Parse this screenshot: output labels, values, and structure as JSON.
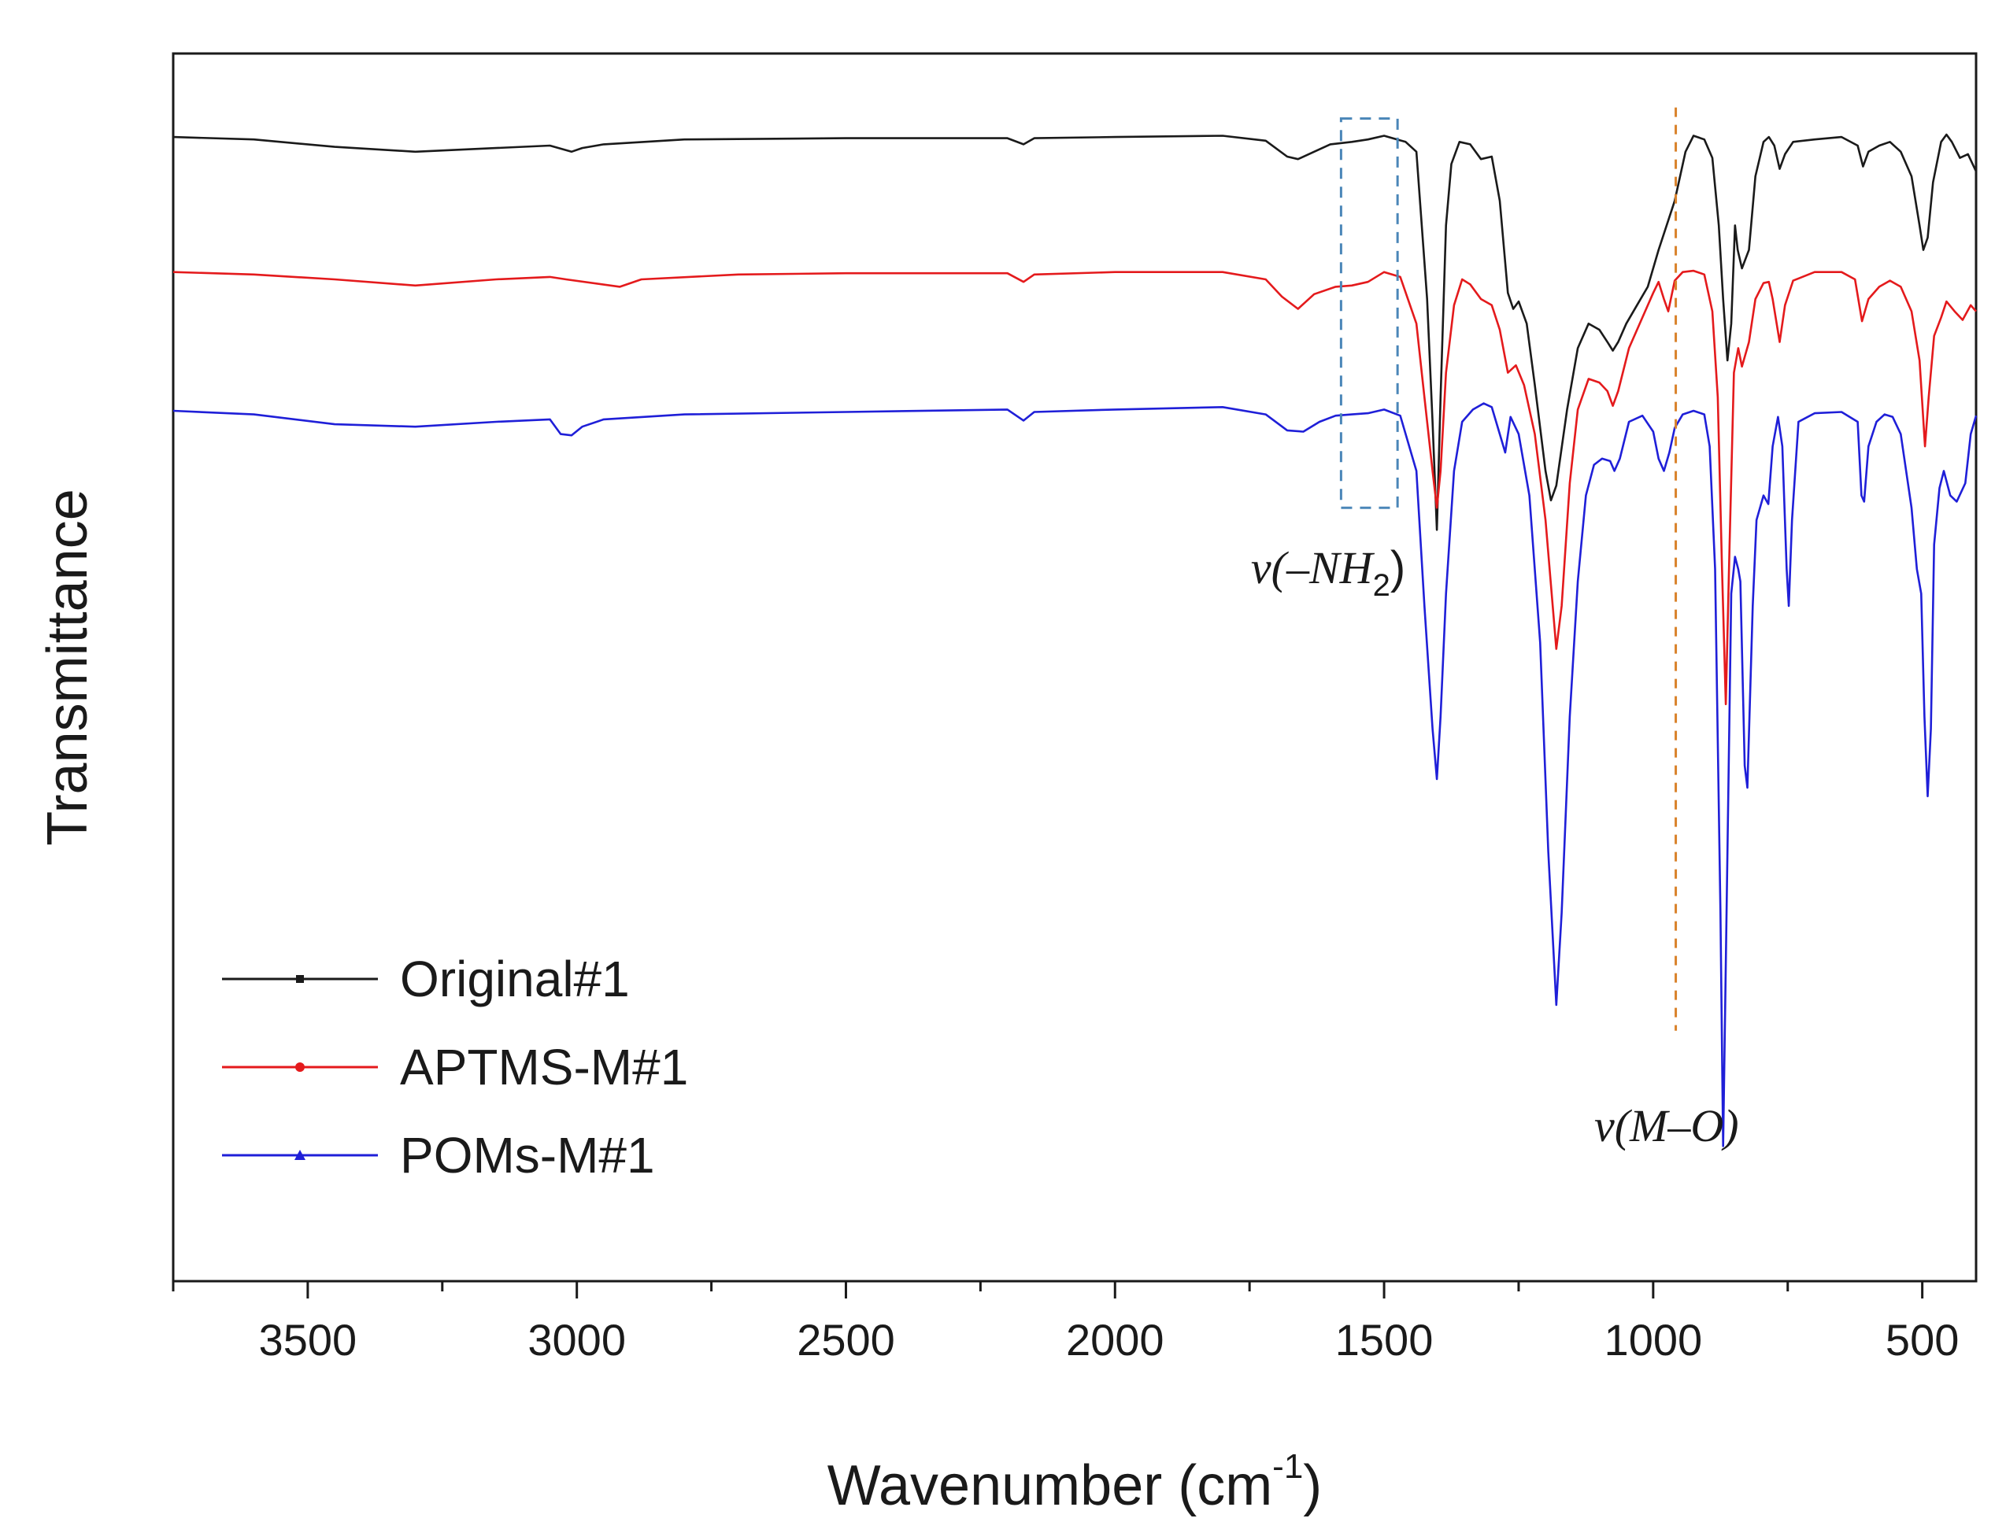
{
  "chart_data": {
    "type": "line",
    "title": "",
    "xlabel": "Wavenumber (cm",
    "xlabel_sup": "-1",
    "xlabel_close": ")",
    "ylabel": "Transmittance",
    "xlim": [
      3750,
      400
    ],
    "ylim": [
      0,
      100
    ],
    "x_ticks": [
      3500,
      3000,
      2500,
      2000,
      1500,
      1000,
      500
    ],
    "grid": false,
    "legend_position": "bottom-left",
    "series": [
      {
        "name": "Original#1",
        "color": "#1a1a1a",
        "marker": "square",
        "points": [
          [
            3750,
            93.2
          ],
          [
            3600,
            93.0
          ],
          [
            3450,
            92.4
          ],
          [
            3300,
            92.0
          ],
          [
            3150,
            92.3
          ],
          [
            3050,
            92.5
          ],
          [
            3010,
            92.0
          ],
          [
            2990,
            92.3
          ],
          [
            2950,
            92.6
          ],
          [
            2800,
            93.0
          ],
          [
            2500,
            93.1
          ],
          [
            2200,
            93.1
          ],
          [
            2170,
            92.6
          ],
          [
            2150,
            93.1
          ],
          [
            2000,
            93.2
          ],
          [
            1800,
            93.3
          ],
          [
            1720,
            92.9
          ],
          [
            1680,
            91.6
          ],
          [
            1660,
            91.4
          ],
          [
            1630,
            92.0
          ],
          [
            1600,
            92.6
          ],
          [
            1560,
            92.8
          ],
          [
            1530,
            93.0
          ],
          [
            1500,
            93.3
          ],
          [
            1460,
            92.8
          ],
          [
            1440,
            92.0
          ],
          [
            1420,
            80.0
          ],
          [
            1410,
            70.0
          ],
          [
            1402,
            61.2
          ],
          [
            1395,
            72.0
          ],
          [
            1385,
            86.0
          ],
          [
            1375,
            91.0
          ],
          [
            1360,
            92.8
          ],
          [
            1340,
            92.6
          ],
          [
            1320,
            91.4
          ],
          [
            1300,
            91.6
          ],
          [
            1285,
            88.0
          ],
          [
            1270,
            80.5
          ],
          [
            1260,
            79.2
          ],
          [
            1250,
            79.8
          ],
          [
            1235,
            78.0
          ],
          [
            1220,
            73.0
          ],
          [
            1200,
            66.0
          ],
          [
            1190,
            63.6
          ],
          [
            1180,
            64.8
          ],
          [
            1160,
            71.0
          ],
          [
            1140,
            76.0
          ],
          [
            1120,
            78.0
          ],
          [
            1100,
            77.5
          ],
          [
            1085,
            76.5
          ],
          [
            1075,
            75.8
          ],
          [
            1065,
            76.5
          ],
          [
            1050,
            78.0
          ],
          [
            1030,
            79.5
          ],
          [
            1010,
            81.0
          ],
          [
            990,
            84.0
          ],
          [
            960,
            88.0
          ],
          [
            940,
            92.0
          ],
          [
            925,
            93.3
          ],
          [
            905,
            93.0
          ],
          [
            890,
            91.5
          ],
          [
            878,
            86.0
          ],
          [
            870,
            80.0
          ],
          [
            862,
            75.0
          ],
          [
            855,
            78.0
          ],
          [
            848,
            86.0
          ],
          [
            843,
            84.0
          ],
          [
            835,
            82.5
          ],
          [
            822,
            84.0
          ],
          [
            810,
            90.0
          ],
          [
            795,
            92.8
          ],
          [
            785,
            93.2
          ],
          [
            775,
            92.5
          ],
          [
            765,
            90.6
          ],
          [
            755,
            91.8
          ],
          [
            740,
            92.8
          ],
          [
            700,
            93.0
          ],
          [
            650,
            93.2
          ],
          [
            620,
            92.5
          ],
          [
            610,
            90.8
          ],
          [
            600,
            92.0
          ],
          [
            580,
            92.5
          ],
          [
            560,
            92.8
          ],
          [
            540,
            92.0
          ],
          [
            520,
            90.0
          ],
          [
            505,
            86.0
          ],
          [
            498,
            84.0
          ],
          [
            490,
            85.0
          ],
          [
            480,
            89.5
          ],
          [
            465,
            92.8
          ],
          [
            455,
            93.4
          ],
          [
            445,
            92.8
          ],
          [
            430,
            91.5
          ],
          [
            415,
            91.8
          ],
          [
            400,
            90.4
          ]
        ]
      },
      {
        "name": "APTMS-M#1",
        "color": "#e41a1c",
        "marker": "circle",
        "points": [
          [
            3750,
            82.2
          ],
          [
            3600,
            82.0
          ],
          [
            3450,
            81.6
          ],
          [
            3300,
            81.1
          ],
          [
            3150,
            81.6
          ],
          [
            3050,
            81.8
          ],
          [
            3020,
            81.6
          ],
          [
            2920,
            81.0
          ],
          [
            2880,
            81.6
          ],
          [
            2700,
            82.0
          ],
          [
            2500,
            82.1
          ],
          [
            2200,
            82.1
          ],
          [
            2170,
            81.4
          ],
          [
            2150,
            82.0
          ],
          [
            2000,
            82.2
          ],
          [
            1800,
            82.2
          ],
          [
            1720,
            81.6
          ],
          [
            1690,
            80.2
          ],
          [
            1660,
            79.2
          ],
          [
            1630,
            80.4
          ],
          [
            1590,
            81.0
          ],
          [
            1560,
            81.1
          ],
          [
            1530,
            81.4
          ],
          [
            1500,
            82.2
          ],
          [
            1470,
            81.8
          ],
          [
            1440,
            78.0
          ],
          [
            1425,
            72.0
          ],
          [
            1410,
            66.0
          ],
          [
            1402,
            63.0
          ],
          [
            1395,
            66.0
          ],
          [
            1385,
            74.0
          ],
          [
            1370,
            79.5
          ],
          [
            1355,
            81.6
          ],
          [
            1340,
            81.2
          ],
          [
            1320,
            80.0
          ],
          [
            1300,
            79.5
          ],
          [
            1285,
            77.5
          ],
          [
            1270,
            74.0
          ],
          [
            1255,
            74.6
          ],
          [
            1240,
            73.0
          ],
          [
            1220,
            69.0
          ],
          [
            1200,
            62.0
          ],
          [
            1180,
            51.5
          ],
          [
            1170,
            55.0
          ],
          [
            1155,
            65.0
          ],
          [
            1140,
            71.0
          ],
          [
            1120,
            73.5
          ],
          [
            1100,
            73.2
          ],
          [
            1085,
            72.5
          ],
          [
            1075,
            71.3
          ],
          [
            1065,
            72.5
          ],
          [
            1045,
            76.0
          ],
          [
            1020,
            78.5
          ],
          [
            1000,
            80.5
          ],
          [
            990,
            81.4
          ],
          [
            980,
            80.0
          ],
          [
            972,
            79.0
          ],
          [
            960,
            81.5
          ],
          [
            945,
            82.2
          ],
          [
            925,
            82.3
          ],
          [
            905,
            82.0
          ],
          [
            890,
            79.0
          ],
          [
            880,
            72.0
          ],
          [
            872,
            58.0
          ],
          [
            865,
            47.0
          ],
          [
            858,
            60.0
          ],
          [
            850,
            74.0
          ],
          [
            842,
            76.0
          ],
          [
            835,
            74.5
          ],
          [
            822,
            76.5
          ],
          [
            810,
            80.0
          ],
          [
            795,
            81.3
          ],
          [
            785,
            81.4
          ],
          [
            778,
            80.0
          ],
          [
            765,
            76.5
          ],
          [
            755,
            79.5
          ],
          [
            740,
            81.5
          ],
          [
            700,
            82.2
          ],
          [
            650,
            82.2
          ],
          [
            625,
            81.6
          ],
          [
            612,
            78.2
          ],
          [
            600,
            80.0
          ],
          [
            580,
            81.0
          ],
          [
            560,
            81.5
          ],
          [
            540,
            81.0
          ],
          [
            520,
            79.0
          ],
          [
            505,
            75.0
          ],
          [
            495,
            68.0
          ],
          [
            488,
            72.0
          ],
          [
            478,
            77.0
          ],
          [
            465,
            78.5
          ],
          [
            455,
            79.8
          ],
          [
            440,
            79.0
          ],
          [
            425,
            78.3
          ],
          [
            410,
            79.5
          ],
          [
            400,
            79.0
          ]
        ]
      },
      {
        "name": "POMs-M#1",
        "color": "#1f1fd8",
        "marker": "triangle",
        "points": [
          [
            3750,
            70.9
          ],
          [
            3600,
            70.6
          ],
          [
            3450,
            69.8
          ],
          [
            3300,
            69.6
          ],
          [
            3150,
            70.0
          ],
          [
            3050,
            70.2
          ],
          [
            3030,
            69.0
          ],
          [
            3010,
            68.9
          ],
          [
            2990,
            69.6
          ],
          [
            2950,
            70.2
          ],
          [
            2800,
            70.6
          ],
          [
            2500,
            70.8
          ],
          [
            2200,
            71.0
          ],
          [
            2170,
            70.1
          ],
          [
            2150,
            70.8
          ],
          [
            2000,
            71.0
          ],
          [
            1800,
            71.2
          ],
          [
            1720,
            70.6
          ],
          [
            1680,
            69.3
          ],
          [
            1650,
            69.2
          ],
          [
            1620,
            70.0
          ],
          [
            1590,
            70.5
          ],
          [
            1560,
            70.6
          ],
          [
            1530,
            70.7
          ],
          [
            1500,
            71.0
          ],
          [
            1470,
            70.5
          ],
          [
            1440,
            66.0
          ],
          [
            1425,
            55.0
          ],
          [
            1410,
            45.0
          ],
          [
            1402,
            40.9
          ],
          [
            1395,
            46.0
          ],
          [
            1385,
            56.0
          ],
          [
            1370,
            66.0
          ],
          [
            1355,
            70.0
          ],
          [
            1335,
            71.0
          ],
          [
            1315,
            71.5
          ],
          [
            1300,
            71.2
          ],
          [
            1285,
            69.0
          ],
          [
            1275,
            67.5
          ],
          [
            1265,
            70.4
          ],
          [
            1250,
            69.0
          ],
          [
            1230,
            64.0
          ],
          [
            1210,
            52.0
          ],
          [
            1195,
            35.0
          ],
          [
            1180,
            22.5
          ],
          [
            1170,
            30.0
          ],
          [
            1155,
            46.0
          ],
          [
            1140,
            57.0
          ],
          [
            1125,
            64.0
          ],
          [
            1110,
            66.5
          ],
          [
            1095,
            67.0
          ],
          [
            1080,
            66.8
          ],
          [
            1072,
            66.0
          ],
          [
            1062,
            67.0
          ],
          [
            1045,
            70.0
          ],
          [
            1020,
            70.5
          ],
          [
            1000,
            69.2
          ],
          [
            990,
            67.0
          ],
          [
            980,
            66.0
          ],
          [
            970,
            67.5
          ],
          [
            960,
            69.5
          ],
          [
            945,
            70.6
          ],
          [
            925,
            70.9
          ],
          [
            905,
            70.6
          ],
          [
            895,
            68.0
          ],
          [
            885,
            58.0
          ],
          [
            875,
            30.0
          ],
          [
            870,
            11.0
          ],
          [
            862,
            35.0
          ],
          [
            855,
            56.0
          ],
          [
            848,
            59.0
          ],
          [
            842,
            58.0
          ],
          [
            838,
            57.0
          ],
          [
            830,
            42.0
          ],
          [
            825,
            40.2
          ],
          [
            815,
            55.0
          ],
          [
            808,
            62.0
          ],
          [
            795,
            64.0
          ],
          [
            786,
            63.3
          ],
          [
            778,
            68.0
          ],
          [
            768,
            70.4
          ],
          [
            760,
            68.0
          ],
          [
            752,
            58.0
          ],
          [
            748,
            55.0
          ],
          [
            742,
            62.0
          ],
          [
            730,
            70.0
          ],
          [
            700,
            70.7
          ],
          [
            650,
            70.8
          ],
          [
            620,
            70.0
          ],
          [
            613,
            64.0
          ],
          [
            608,
            63.5
          ],
          [
            600,
            68.0
          ],
          [
            585,
            70.0
          ],
          [
            570,
            70.6
          ],
          [
            555,
            70.4
          ],
          [
            540,
            69.0
          ],
          [
            520,
            63.0
          ],
          [
            510,
            58.0
          ],
          [
            502,
            56.0
          ],
          [
            496,
            46.0
          ],
          [
            490,
            39.5
          ],
          [
            484,
            45.0
          ],
          [
            478,
            60.0
          ],
          [
            468,
            64.6
          ],
          [
            460,
            66.0
          ],
          [
            448,
            64.0
          ],
          [
            436,
            63.5
          ],
          [
            420,
            65.0
          ],
          [
            410,
            69.0
          ],
          [
            400,
            70.5
          ]
        ]
      }
    ],
    "annotations": [
      {
        "label": "ν(–NH",
        "sub": "2",
        "close": ")",
        "kind": "dashed-box",
        "x_range": [
          1580,
          1475
        ],
        "y_range": [
          63.0,
          94.7
        ]
      },
      {
        "label": "ν(M–O)",
        "kind": "dashed-line",
        "x": 958,
        "y_range": [
          20.4,
          95.6
        ]
      }
    ]
  }
}
